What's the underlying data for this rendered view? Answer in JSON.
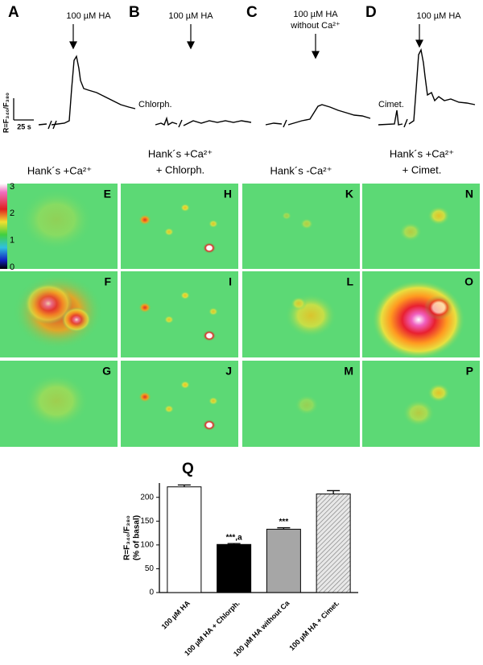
{
  "traces": [
    {
      "label": "A",
      "stimulus": [
        "100 µM HA"
      ]
    },
    {
      "label": "B",
      "stimulus": [
        "100 µM HA"
      ],
      "treatment": "Chlorph."
    },
    {
      "label": "C",
      "stimulus": [
        "100 µM HA",
        "without Ca²⁺"
      ]
    },
    {
      "label": "D",
      "stimulus": [
        "100 µM HA"
      ],
      "treatment": "Cimet."
    }
  ],
  "scale_bar": {
    "y_label": "R=F₃₄₀/F₃₈₀",
    "x_label": "25 s"
  },
  "image_columns": [
    {
      "header": [
        "Hank´s +Ca²⁺"
      ],
      "panels": [
        "E",
        "F",
        "G"
      ]
    },
    {
      "header": [
        "Hank´s +Ca²⁺",
        "+ Chlorph."
      ],
      "panels": [
        "H",
        "I",
        "J"
      ]
    },
    {
      "header": [
        "Hank´s -Ca²⁺"
      ],
      "panels": [
        "K",
        "L",
        "M"
      ]
    },
    {
      "header": [
        "Hank´s +Ca²⁺",
        "+ Cimet."
      ],
      "panels": [
        "N",
        "O",
        "P"
      ]
    }
  ],
  "color_scale": {
    "ticks": [
      3,
      2,
      1,
      0
    ]
  },
  "chart_data": {
    "type": "bar",
    "title": "Q",
    "ylabel": [
      "R=F₃₄₀/F₃₈₀",
      "(% of basal)"
    ],
    "categories": [
      "100 µM HA",
      "100 µM HA + Chlorph.",
      "100 µM HA without Ca",
      "100 µM HA + Cimet."
    ],
    "values": [
      222,
      101,
      133,
      207
    ],
    "errors": [
      4,
      2,
      3,
      7
    ],
    "colors": [
      "#ffffff",
      "#000000",
      "#a6a6a6",
      "#dcdcdc"
    ],
    "hatch": [
      false,
      false,
      false,
      true
    ],
    "annotations": [
      null,
      "***,a",
      "***",
      null
    ],
    "ylim": [
      0,
      230
    ],
    "yticks": [
      0,
      50,
      100,
      150,
      200
    ]
  }
}
